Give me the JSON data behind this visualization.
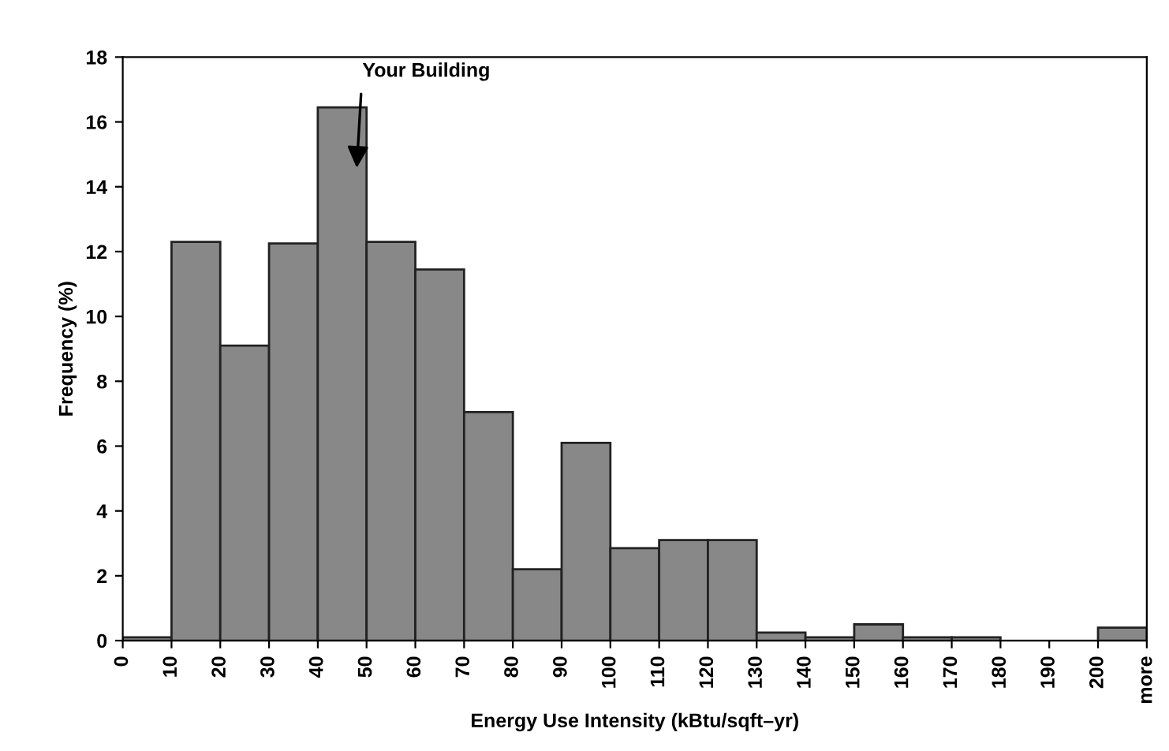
{
  "chart_data": {
    "type": "histogram",
    "xlabel": "Energy Use Intensity (kBtu/sqft–yr)",
    "ylabel": "Frequency (%)",
    "bins": [
      0,
      10,
      20,
      30,
      40,
      50,
      60,
      70,
      80,
      90,
      100,
      110,
      120,
      130,
      140,
      150,
      160,
      170,
      180,
      190,
      200,
      210
    ],
    "values": [
      0.1,
      12.3,
      9.1,
      12.25,
      16.45,
      12.3,
      11.45,
      7.05,
      2.2,
      6.1,
      2.85,
      3.1,
      3.1,
      0.25,
      0.1,
      0.5,
      0.1,
      0.1,
      0,
      0,
      0.4
    ],
    "color": "#888888",
    "xlim": [
      0,
      210
    ],
    "ylim": [
      0,
      18
    ],
    "xticks": [
      0,
      10,
      20,
      30,
      40,
      50,
      60,
      70,
      80,
      90,
      100,
      110,
      120,
      130,
      140,
      150,
      160,
      170,
      180,
      190,
      200,
      {
        "value": 210,
        "label": "more"
      }
    ],
    "yticks": [
      0,
      2,
      4,
      6,
      8,
      10,
      12,
      14,
      16,
      18
    ],
    "annotations": [
      "Your Building"
    ],
    "grid": false
  }
}
